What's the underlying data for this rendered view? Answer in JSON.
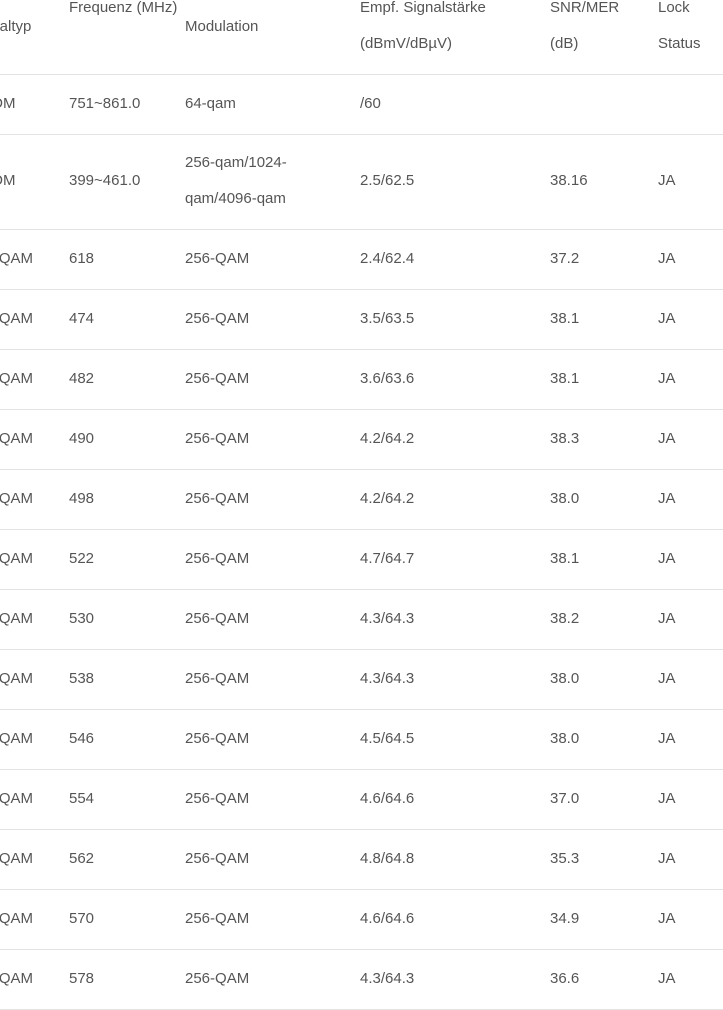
{
  "table": {
    "headers": [
      "analtyp",
      "Frequenz (MHz)",
      "Modulation",
      "Empf. Signalstärke (dBmV/dBµV)",
      "SNR/MER (dB)",
      "Lock Status"
    ],
    "rows": [
      [
        "FDM",
        "751~861.0",
        "64-qam",
        "/60",
        "",
        ""
      ],
      [
        "FDM",
        "399~461.0",
        "256-qam/1024-qam/4096-qam",
        "2.5/62.5",
        "38.16",
        "JA"
      ],
      [
        "C-QAM",
        "618",
        "256-QAM",
        "2.4/62.4",
        "37.2",
        "JA"
      ],
      [
        "C-QAM",
        "474",
        "256-QAM",
        "3.5/63.5",
        "38.1",
        "JA"
      ],
      [
        "C-QAM",
        "482",
        "256-QAM",
        "3.6/63.6",
        "38.1",
        "JA"
      ],
      [
        "C-QAM",
        "490",
        "256-QAM",
        "4.2/64.2",
        "38.3",
        "JA"
      ],
      [
        "C-QAM",
        "498",
        "256-QAM",
        "4.2/64.2",
        "38.0",
        "JA"
      ],
      [
        "C-QAM",
        "522",
        "256-QAM",
        "4.7/64.7",
        "38.1",
        "JA"
      ],
      [
        "C-QAM",
        "530",
        "256-QAM",
        "4.3/64.3",
        "38.2",
        "JA"
      ],
      [
        "C-QAM",
        "538",
        "256-QAM",
        "4.3/64.3",
        "38.0",
        "JA"
      ],
      [
        "C-QAM",
        "546",
        "256-QAM",
        "4.5/64.5",
        "38.0",
        "JA"
      ],
      [
        "C-QAM",
        "554",
        "256-QAM",
        "4.6/64.6",
        "37.0",
        "JA"
      ],
      [
        "C-QAM",
        "562",
        "256-QAM",
        "4.8/64.8",
        "35.3",
        "JA"
      ],
      [
        "C-QAM",
        "570",
        "256-QAM",
        "4.6/64.6",
        "34.9",
        "JA"
      ],
      [
        "C-QAM",
        "578",
        "256-QAM",
        "4.3/64.3",
        "36.6",
        "JA"
      ]
    ]
  }
}
